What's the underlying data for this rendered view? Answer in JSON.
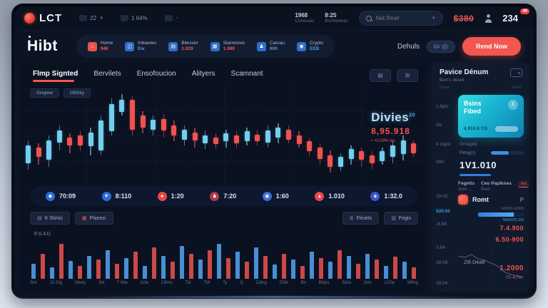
{
  "colors": {
    "accent_red": "#f2564f",
    "up": "#72cfee",
    "down": "#ef5350",
    "blue": "#3d9ae8",
    "card_teal_start": "#36dce0",
    "card_teal_end": "#0f7fb2"
  },
  "topbar": {
    "logo": "LCT",
    "workspaces": "22",
    "usage": "1 64%",
    "stat1": {
      "value": "1968",
      "label": "Cohesais"
    },
    "stat2": {
      "value": "8:25",
      "label": "Bortredean"
    },
    "search_placeholder": "Nat Resir",
    "price": "$380",
    "notif_count": "234",
    "notif_badge": "49"
  },
  "nav": {
    "brand": "Hibt",
    "items": [
      {
        "label": "Home",
        "value": "946",
        "icon": "home-icon",
        "glyph": "⌂",
        "icon_color": "#e8534a",
        "value_color": "#f05a54"
      },
      {
        "label": "Inbawtes",
        "value": "Ew",
        "icon": "chart-icon",
        "glyph": "◫",
        "icon_color": "#2f6fc8",
        "value_color": "#4a9ae0"
      },
      {
        "label": "Bitesver",
        "value": "1.029",
        "icon": "document-icon",
        "glyph": "▤",
        "icon_color": "#2f6fc8",
        "value_color": "#f05a54"
      },
      {
        "label": "Starreisws",
        "value": "1.080",
        "icon": "grid-icon",
        "glyph": "▦",
        "icon_color": "#2f6fc8",
        "value_color": "#f05a54"
      },
      {
        "label": "Casrau",
        "value": "909",
        "icon": "users-icon",
        "glyph": "♟",
        "icon_color": "#2f6fc8",
        "value_color": "#4a9ae0"
      },
      {
        "label": "Crypto",
        "value": "EEB",
        "icon": "coin-icon",
        "glyph": "◉",
        "icon_color": "#2f6fc8",
        "value_color": "#4a9ae0"
      }
    ],
    "details_label": "Dehuls",
    "toggle_label": "Qs",
    "cta_label": "Rend Now"
  },
  "tabs": {
    "items": [
      {
        "label": "Flmp Signted",
        "active": true
      },
      {
        "label": "Bervilets",
        "active": false
      },
      {
        "label": "Ensofoucion",
        "active": false
      },
      {
        "label": "Alityers",
        "active": false
      },
      {
        "label": "Scamnant",
        "active": false
      }
    ],
    "action_glyphs": [
      "▤ s",
      "⊞ ▥"
    ]
  },
  "chart": {
    "pill1": "Singiew",
    "pill2": "OBSky",
    "symbol": "Divies",
    "symbol_sup": "20",
    "price": "8,95.918",
    "change": "+0.09% tes",
    "up_color": "#72cfee",
    "down_color": "#ef5350",
    "candles": [
      [
        55,
        60,
        18,
        85,
        1
      ],
      [
        58,
        62,
        10,
        80,
        0
      ],
      [
        50,
        55,
        20,
        82,
        1
      ],
      [
        40,
        45,
        12,
        65,
        1
      ],
      [
        48,
        52,
        8,
        68,
        0
      ],
      [
        45,
        50,
        10,
        66,
        0
      ],
      [
        42,
        47,
        14,
        70,
        1
      ],
      [
        30,
        35,
        30,
        70,
        1
      ],
      [
        12,
        18,
        28,
        50,
        1
      ],
      [
        8,
        14,
        12,
        30,
        1
      ],
      [
        10,
        14,
        30,
        50,
        0
      ],
      [
        25,
        30,
        12,
        48,
        0
      ],
      [
        30,
        34,
        10,
        50,
        1
      ],
      [
        28,
        33,
        12,
        52,
        0
      ],
      [
        35,
        40,
        10,
        56,
        0
      ],
      [
        40,
        44,
        10,
        60,
        1
      ],
      [
        42,
        47,
        8,
        62,
        0
      ],
      [
        45,
        50,
        8,
        64,
        1
      ],
      [
        48,
        52,
        7,
        64,
        0
      ],
      [
        44,
        48,
        8,
        62,
        1
      ],
      [
        46,
        50,
        8,
        63,
        0
      ],
      [
        42,
        46,
        10,
        60,
        1
      ],
      [
        44,
        49,
        7,
        60,
        0
      ],
      [
        40,
        45,
        12,
        62,
        1
      ],
      [
        38,
        42,
        10,
        58,
        1
      ],
      [
        40,
        44,
        10,
        58,
        0
      ],
      [
        46,
        50,
        9,
        62,
        0
      ],
      [
        52,
        56,
        10,
        70,
        0
      ],
      [
        58,
        62,
        12,
        80,
        0
      ],
      [
        65,
        70,
        12,
        88,
        0
      ],
      [
        68,
        72,
        10,
        86,
        1
      ],
      [
        60,
        64,
        10,
        80,
        1
      ],
      [
        62,
        66,
        9,
        82,
        0
      ],
      [
        66,
        70,
        8,
        84,
        0
      ],
      [
        62,
        66,
        10,
        80,
        1
      ],
      [
        55,
        60,
        12,
        78,
        1
      ],
      [
        50,
        55,
        14,
        75,
        1
      ],
      [
        54,
        58,
        10,
        72,
        0
      ]
    ]
  },
  "stats": {
    "items": [
      {
        "icon": "shield-icon",
        "glyph": "◆",
        "color": "#2e6bd8",
        "value": "70:09"
      },
      {
        "icon": "arrow-down-icon",
        "glyph": "▼",
        "color": "#2e6bd8",
        "value": "8:110"
      },
      {
        "icon": "dot-icon",
        "glyph": "●",
        "color": "#ea4747",
        "value": "1:20"
      },
      {
        "icon": "person-icon",
        "glyph": "♟",
        "color": "#b03a4a",
        "value": "7:20"
      },
      {
        "icon": "globe-icon",
        "glyph": "◉",
        "color": "#3a6fd0",
        "value": "1:60"
      },
      {
        "icon": "flame-icon",
        "glyph": "▲",
        "color": "#ea4747",
        "value": "1.010"
      },
      {
        "icon": "network-icon",
        "glyph": "◈",
        "color": "#3a55c8",
        "value": "1:32.0"
      }
    ]
  },
  "volume": {
    "label": "EGAD",
    "buttons_left": [
      {
        "glyph": "▤",
        "label": "K Slimis",
        "glyph_color": "#7487a3"
      },
      {
        "glyph": "▦",
        "label": "Planezi",
        "glyph_color": "#e85555"
      }
    ],
    "buttons_right": [
      {
        "glyph": "⊞",
        "label": "Fliciets",
        "glyph_color": "#7487a3"
      },
      {
        "glyph": "▥",
        "label": "Fegis",
        "glyph_color": "#7487a3"
      }
    ],
    "bars": [
      [
        38,
        0
      ],
      [
        62,
        1
      ],
      [
        28,
        0
      ],
      [
        88,
        1
      ],
      [
        45,
        0
      ],
      [
        32,
        1
      ],
      [
        58,
        0
      ],
      [
        48,
        1
      ],
      [
        72,
        0
      ],
      [
        38,
        1
      ],
      [
        52,
        0
      ],
      [
        68,
        1
      ],
      [
        32,
        0
      ],
      [
        78,
        1
      ],
      [
        58,
        0
      ],
      [
        42,
        1
      ],
      [
        82,
        0
      ],
      [
        62,
        1
      ],
      [
        48,
        0
      ],
      [
        72,
        1
      ],
      [
        88,
        0
      ],
      [
        52,
        1
      ],
      [
        68,
        0
      ],
      [
        42,
        1
      ],
      [
        78,
        0
      ],
      [
        58,
        1
      ],
      [
        36,
        0
      ],
      [
        62,
        1
      ],
      [
        48,
        0
      ],
      [
        32,
        1
      ],
      [
        68,
        0
      ],
      [
        52,
        1
      ],
      [
        42,
        0
      ],
      [
        72,
        1
      ],
      [
        58,
        0
      ],
      [
        38,
        1
      ],
      [
        62,
        0
      ],
      [
        48,
        1
      ],
      [
        32,
        0
      ],
      [
        56,
        1
      ],
      [
        42,
        0
      ],
      [
        28,
        1
      ]
    ],
    "x_labels": [
      "Sim",
      "23 Dig",
      "Sbety",
      "Jrd",
      "7 Ww",
      "2cfa",
      "13tms",
      "Tbi",
      "TW",
      "Ty",
      "I1",
      "Zding",
      "ZWir",
      "Bn",
      "Bbyis",
      "2tida",
      "2nfc",
      "J.00y",
      "Wfing"
    ]
  },
  "sidebar": {
    "title": "Pavice Dénum",
    "subtitle": "Bert's deunt",
    "micro1": "Sxtnd",
    "micro2": "Stred",
    "rail": [
      {
        "label": "1.6pts"
      },
      {
        "label": "3tc"
      },
      {
        "label": "4 ingist"
      },
      {
        "label": "09C"
      },
      {
        "label": "19.0C"
      },
      {
        "label": "520.02",
        "color": "#3d9ae8"
      },
      {
        "label": "-8.88"
      },
      {
        "label": "3.84 -"
      },
      {
        "label": "28.06 -"
      },
      {
        "label": "28.04 -"
      }
    ],
    "card": {
      "line1": "Bsins",
      "line2": "Fibed",
      "number": "4.910.6 CD"
    },
    "caption": "Gmagde",
    "meter_label": "Pimg(c)",
    "balance": "1V1.010",
    "section": {
      "col1_title": "Fegetts",
      "col1_sub": "Alws ⌄",
      "col2_title": "Ceo Paplknea",
      "col2_sub": "Rast",
      "tag": "hot",
      "coin": "Romt",
      "coin_letter": "P",
      "bar_top": "580(5)-0/800",
      "bar_bottom": "N80(05)-0/8",
      "price1": "7.4.900",
      "price2": "6.50-900",
      "mini_label": "Zifi Deatl",
      "price3": "1.2000",
      "change": "70-47%"
    },
    "spark": [
      8,
      10,
      6,
      12,
      14,
      18,
      22,
      30,
      34,
      36,
      38
    ]
  }
}
